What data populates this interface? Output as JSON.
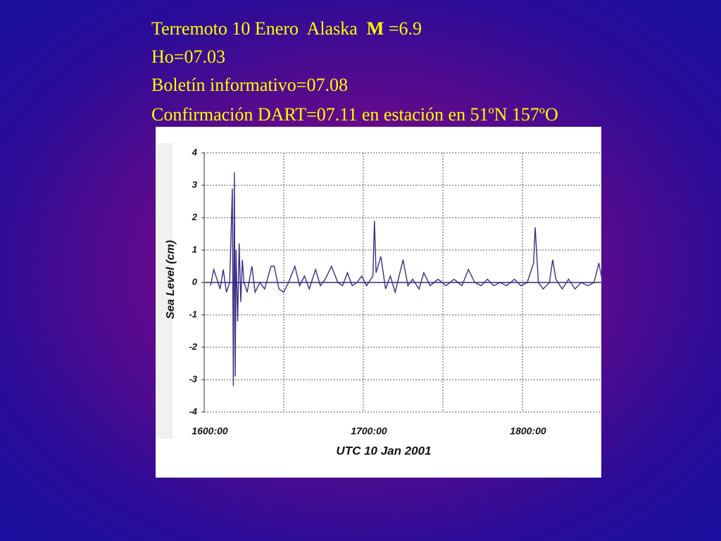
{
  "slide_text": {
    "first_line": {
      "text": "Terremoto 10 Enero  Alaska",
      "bold": "M",
      "rest": "=6.9"
    },
    "lines": [
      "Ho=07.03",
      "Boletín informativo=07.08",
      "Confirmación DART=07.11 en estación en 51ºN 157ºO"
    ]
  },
  "chart_data": {
    "type": "line",
    "x_label": "UTC 10 Jan 2001",
    "y_label": "Sea Level (cm)",
    "xlim": [
      16,
      18.5
    ],
    "xticks": [
      {
        "value": 16,
        "label": "1600:00"
      },
      {
        "value": 17,
        "label": "1700:00"
      },
      {
        "value": 18,
        "label": "1800:00"
      }
    ],
    "xminor": [
      16.5,
      17.5
    ],
    "ylim": [
      -4,
      4
    ],
    "yticks": [
      -4,
      -3,
      -2,
      -1,
      0,
      1,
      2,
      3,
      4
    ],
    "grid": true,
    "zero_line": true,
    "x": [
      16.04,
      16.06,
      16.08,
      16.1,
      16.12,
      16.14,
      16.16,
      16.177,
      16.183,
      16.19,
      16.195,
      16.2,
      16.21,
      16.22,
      16.23,
      16.24,
      16.25,
      16.27,
      16.3,
      16.32,
      16.35,
      16.38,
      16.42,
      16.44,
      16.47,
      16.5,
      16.53,
      16.57,
      16.6,
      16.63,
      16.66,
      16.7,
      16.73,
      16.76,
      16.8,
      16.84,
      16.87,
      16.9,
      16.93,
      16.96,
      16.99,
      17.02,
      17.06,
      17.07,
      17.08,
      17.11,
      17.14,
      17.17,
      17.2,
      17.25,
      17.28,
      17.31,
      17.35,
      17.38,
      17.42,
      17.47,
      17.52,
      17.57,
      17.62,
      17.66,
      17.7,
      17.74,
      17.78,
      17.82,
      17.86,
      17.9,
      17.95,
      17.99,
      18.03,
      18.07,
      18.08,
      18.1,
      18.13,
      18.17,
      18.19,
      18.21,
      18.25,
      18.29,
      18.33,
      18.37,
      18.41,
      18.45,
      18.48,
      18.5
    ],
    "series": [
      {
        "name": "Sea Level",
        "color": "#3b2d86",
        "values": [
          -0.1,
          0.4,
          0.1,
          -0.2,
          0.4,
          -0.3,
          0.0,
          2.9,
          -3.2,
          3.4,
          -2.9,
          1.0,
          -1.2,
          1.2,
          -0.6,
          0.7,
          0.0,
          -0.3,
          0.5,
          -0.3,
          0.0,
          -0.2,
          0.5,
          0.5,
          -0.2,
          -0.3,
          0.0,
          0.5,
          -0.1,
          0.2,
          -0.2,
          0.4,
          -0.1,
          0.1,
          0.5,
          0.0,
          -0.1,
          0.3,
          -0.1,
          0.0,
          0.2,
          -0.1,
          0.2,
          1.9,
          0.3,
          0.8,
          -0.2,
          0.2,
          -0.3,
          0.7,
          -0.1,
          0.1,
          -0.2,
          0.3,
          -0.1,
          0.1,
          -0.1,
          0.1,
          -0.1,
          0.4,
          0.0,
          -0.1,
          0.1,
          -0.1,
          0.0,
          -0.1,
          0.1,
          -0.1,
          0.0,
          0.6,
          1.7,
          0.0,
          -0.2,
          0.0,
          0.7,
          0.1,
          -0.2,
          0.1,
          -0.2,
          0.0,
          -0.1,
          0.0,
          0.6,
          0.1
        ]
      }
    ]
  }
}
